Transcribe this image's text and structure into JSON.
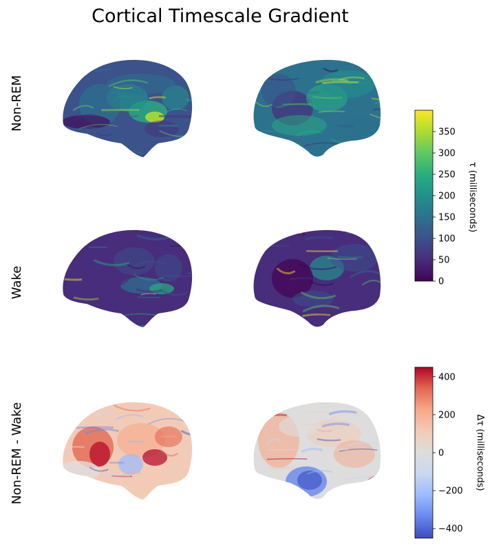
{
  "chart_data": {
    "type": "heatmap",
    "title": "Cortical Timescale Gradient",
    "rows": [
      {
        "label": "Non-REM",
        "colormap": "viridis",
        "views": [
          "left-lateral",
          "right-lateral"
        ]
      },
      {
        "label": "Wake",
        "colormap": "viridis",
        "views": [
          "left-lateral",
          "right-lateral"
        ]
      },
      {
        "label": "Non-REM - Wake",
        "colormap": "coolwarm",
        "views": [
          "left-lateral",
          "right-lateral"
        ]
      }
    ],
    "colorbars": [
      {
        "label": "τ (milliseconds)",
        "colormap": "viridis",
        "range": [
          0,
          400
        ],
        "ticks": [
          0,
          50,
          100,
          150,
          200,
          250,
          300,
          350
        ]
      },
      {
        "label": "Δτ (milliseconds)",
        "colormap": "coolwarm",
        "range": [
          -450,
          450
        ],
        "ticks": [
          -400,
          -200,
          0,
          200,
          400
        ]
      }
    ]
  },
  "colors": {
    "viridis": [
      "#440154",
      "#472d7b",
      "#3b528b",
      "#2c728e",
      "#21918c",
      "#28ae80",
      "#5ec962",
      "#addc30",
      "#fde725"
    ],
    "coolwarm": [
      "#3b4cc0",
      "#6788ee",
      "#9abbff",
      "#c9d7f0",
      "#dddddd",
      "#f2cbb7",
      "#f7a889",
      "#e26952",
      "#b40426"
    ]
  }
}
